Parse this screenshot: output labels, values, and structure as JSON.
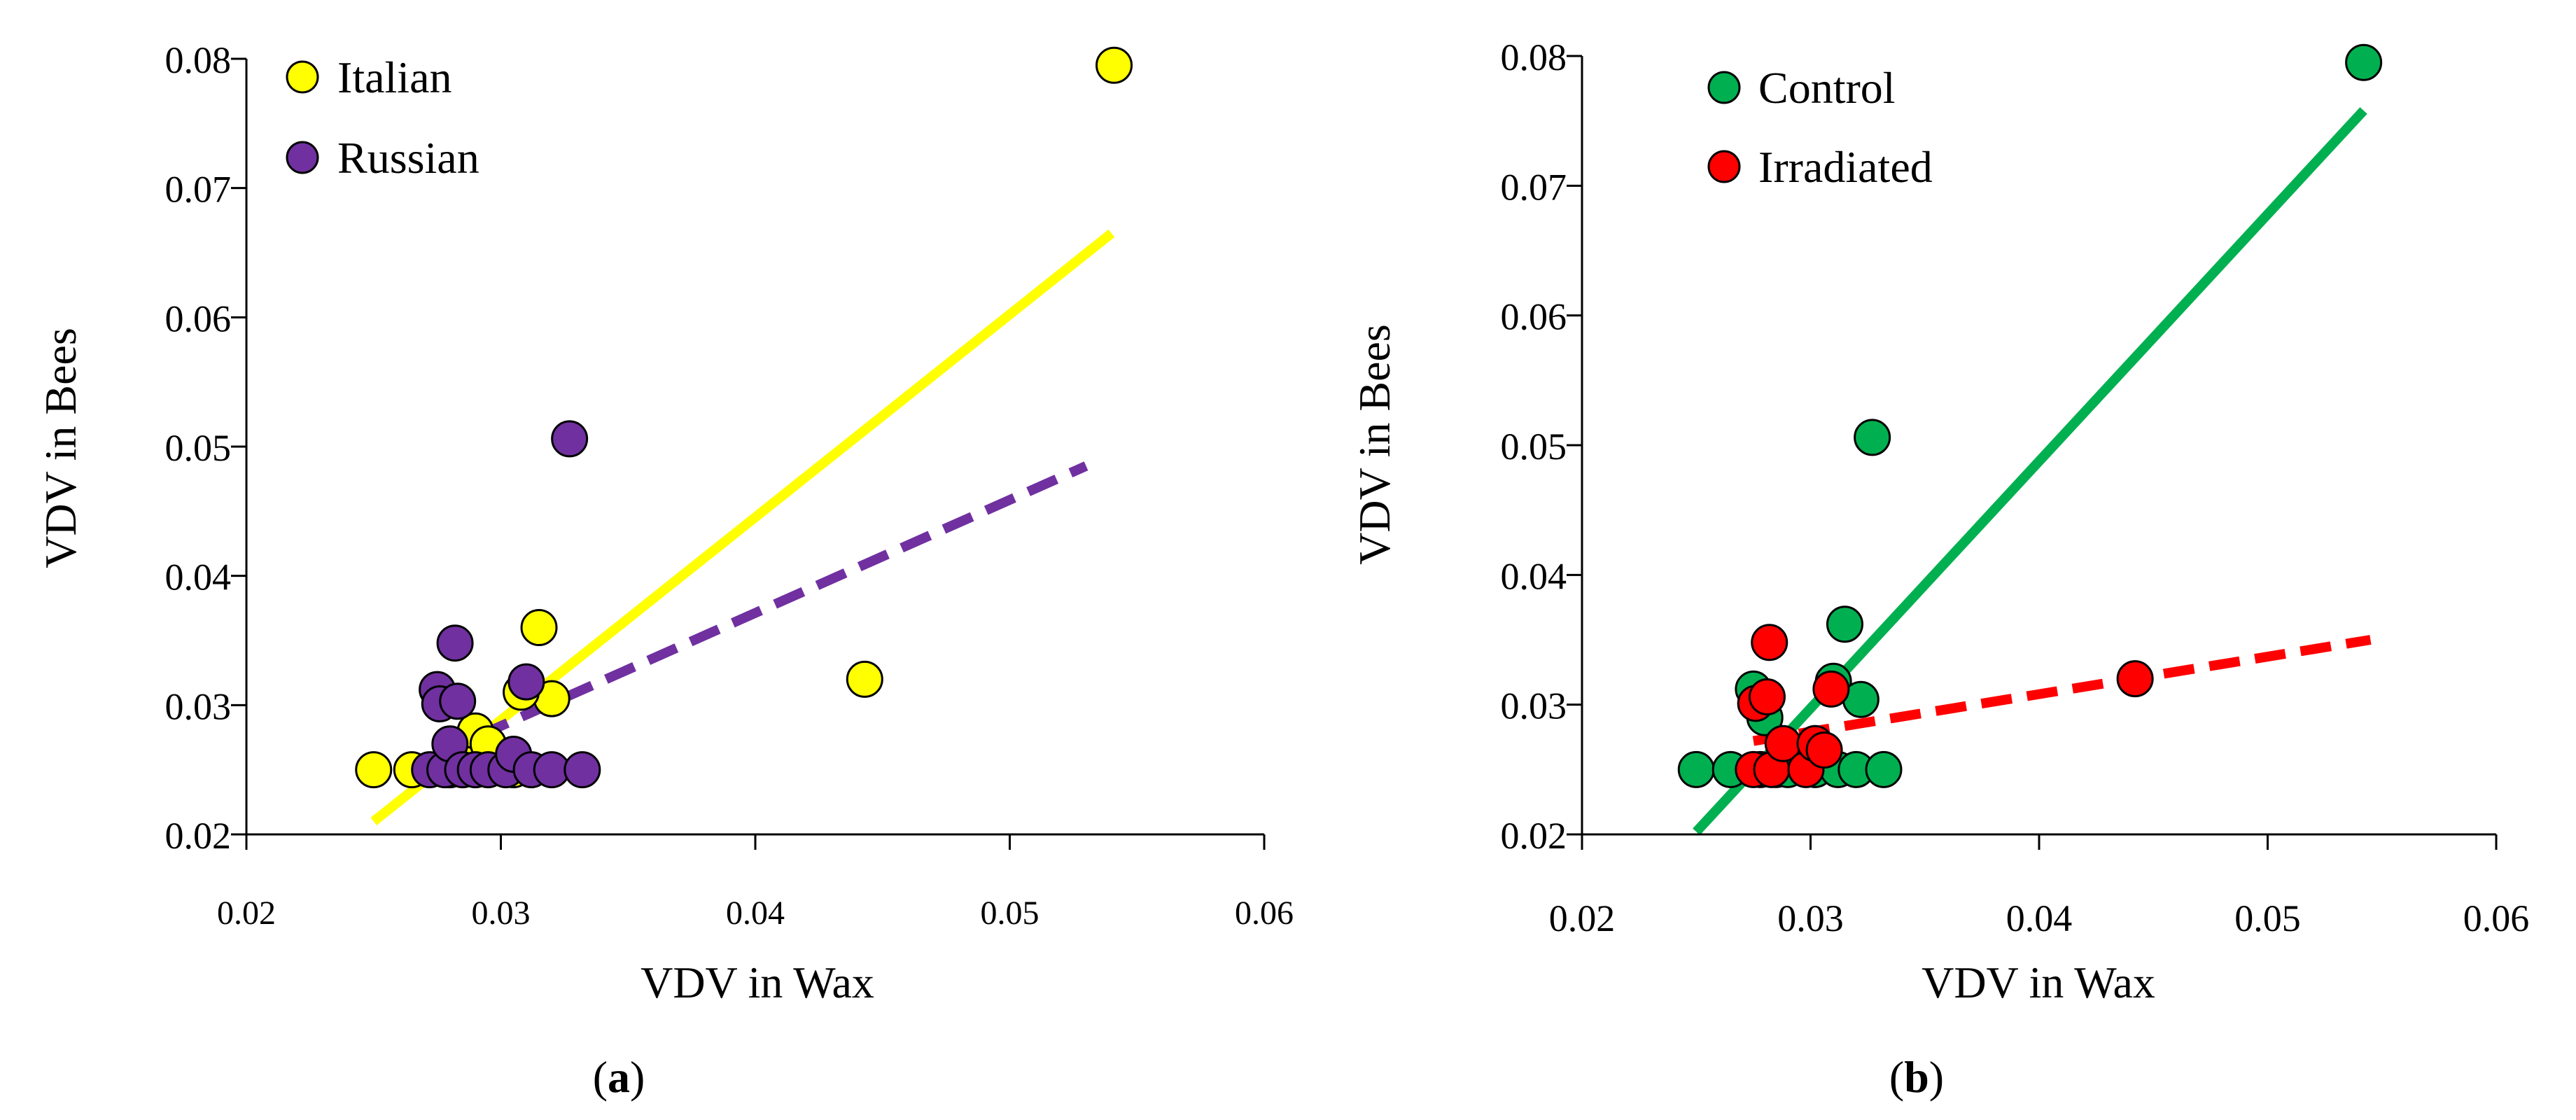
{
  "chart_data": [
    {
      "type": "scatter",
      "panel": "a",
      "caption_letter": "a",
      "xlabel": "VDV in Wax",
      "ylabel": "VDV in Bees",
      "xlim": [
        0.02,
        0.06
      ],
      "ylim": [
        0.02,
        0.08
      ],
      "xticks": [
        0.02,
        0.03,
        0.04,
        0.05,
        0.06
      ],
      "yticks": [
        0.02,
        0.03,
        0.04,
        0.05,
        0.06,
        0.07,
        0.08
      ],
      "legend_position": "top-left",
      "series": [
        {
          "name": "Italian",
          "color": "#ffff00",
          "points": [
            [
              0.025,
              0.025
            ],
            [
              0.0265,
              0.025
            ],
            [
              0.028,
              0.025
            ],
            [
              0.0285,
              0.026
            ],
            [
              0.029,
              0.028
            ],
            [
              0.0295,
              0.027
            ],
            [
              0.0305,
              0.025
            ],
            [
              0.0315,
              0.036
            ],
            [
              0.032,
              0.0305
            ],
            [
              0.0308,
              0.031
            ],
            [
              0.0443,
              0.032
            ],
            [
              0.0541,
              0.0795
            ]
          ],
          "trendline": {
            "x": [
              0.025,
              0.054
            ],
            "y": [
              0.021,
              0.0665
            ],
            "style": "solid"
          }
        },
        {
          "name": "Russian",
          "color": "#7030a0",
          "points": [
            [
              0.0272,
              0.025
            ],
            [
              0.0275,
              0.0312
            ],
            [
              0.0276,
              0.0301
            ],
            [
              0.0278,
              0.025
            ],
            [
              0.028,
              0.027
            ],
            [
              0.0282,
              0.0348
            ],
            [
              0.0283,
              0.0303
            ],
            [
              0.0285,
              0.025
            ],
            [
              0.029,
              0.025
            ],
            [
              0.0295,
              0.025
            ],
            [
              0.0302,
              0.025
            ],
            [
              0.0305,
              0.0262
            ],
            [
              0.031,
              0.0318
            ],
            [
              0.0312,
              0.025
            ],
            [
              0.032,
              0.025
            ],
            [
              0.0327,
              0.0506
            ],
            [
              0.0332,
              0.025
            ]
          ],
          "trendline": {
            "x": [
              0.0275,
              0.053
            ],
            "y": [
              0.0262,
              0.0485
            ],
            "style": "dashed"
          }
        }
      ]
    },
    {
      "type": "scatter",
      "panel": "b",
      "caption_letter": "b",
      "xlabel": "VDV in Wax",
      "ylabel": "VDV in Bees",
      "xlim": [
        0.02,
        0.06
      ],
      "ylim": [
        0.02,
        0.08
      ],
      "xticks": [
        0.02,
        0.03,
        0.04,
        0.05,
        0.06
      ],
      "yticks": [
        0.02,
        0.03,
        0.04,
        0.05,
        0.06,
        0.07,
        0.08
      ],
      "legend_position": "top-left",
      "series": [
        {
          "name": "Control",
          "color": "#00b050",
          "points": [
            [
              0.025,
              0.025
            ],
            [
              0.0265,
              0.025
            ],
            [
              0.0275,
              0.0312
            ],
            [
              0.0278,
              0.025
            ],
            [
              0.028,
              0.029
            ],
            [
              0.0285,
              0.025
            ],
            [
              0.029,
              0.025
            ],
            [
              0.0295,
              0.026
            ],
            [
              0.0302,
              0.025
            ],
            [
              0.031,
              0.0318
            ],
            [
              0.0312,
              0.025
            ],
            [
              0.0315,
              0.0362
            ],
            [
              0.032,
              0.025
            ],
            [
              0.0322,
              0.0304
            ],
            [
              0.0327,
              0.0506
            ],
            [
              0.0332,
              0.025
            ],
            [
              0.0542,
              0.0795
            ]
          ],
          "trendline": {
            "x": [
              0.025,
              0.0542
            ],
            "y": [
              0.0202,
              0.0758
            ],
            "style": "solid"
          }
        },
        {
          "name": "Irradiated",
          "color": "#ff0000",
          "points": [
            [
              0.0275,
              0.025
            ],
            [
              0.0276,
              0.0301
            ],
            [
              0.0281,
              0.0306
            ],
            [
              0.0282,
              0.0348
            ],
            [
              0.0283,
              0.025
            ],
            [
              0.0288,
              0.027
            ],
            [
              0.0298,
              0.025
            ],
            [
              0.0302,
              0.027
            ],
            [
              0.0306,
              0.0265
            ],
            [
              0.0309,
              0.0312
            ],
            [
              0.0442,
              0.032
            ]
          ],
          "trendline": {
            "x": [
              0.0275,
              0.0545
            ],
            "y": [
              0.0272,
              0.035
            ],
            "style": "dashed"
          }
        }
      ]
    }
  ]
}
